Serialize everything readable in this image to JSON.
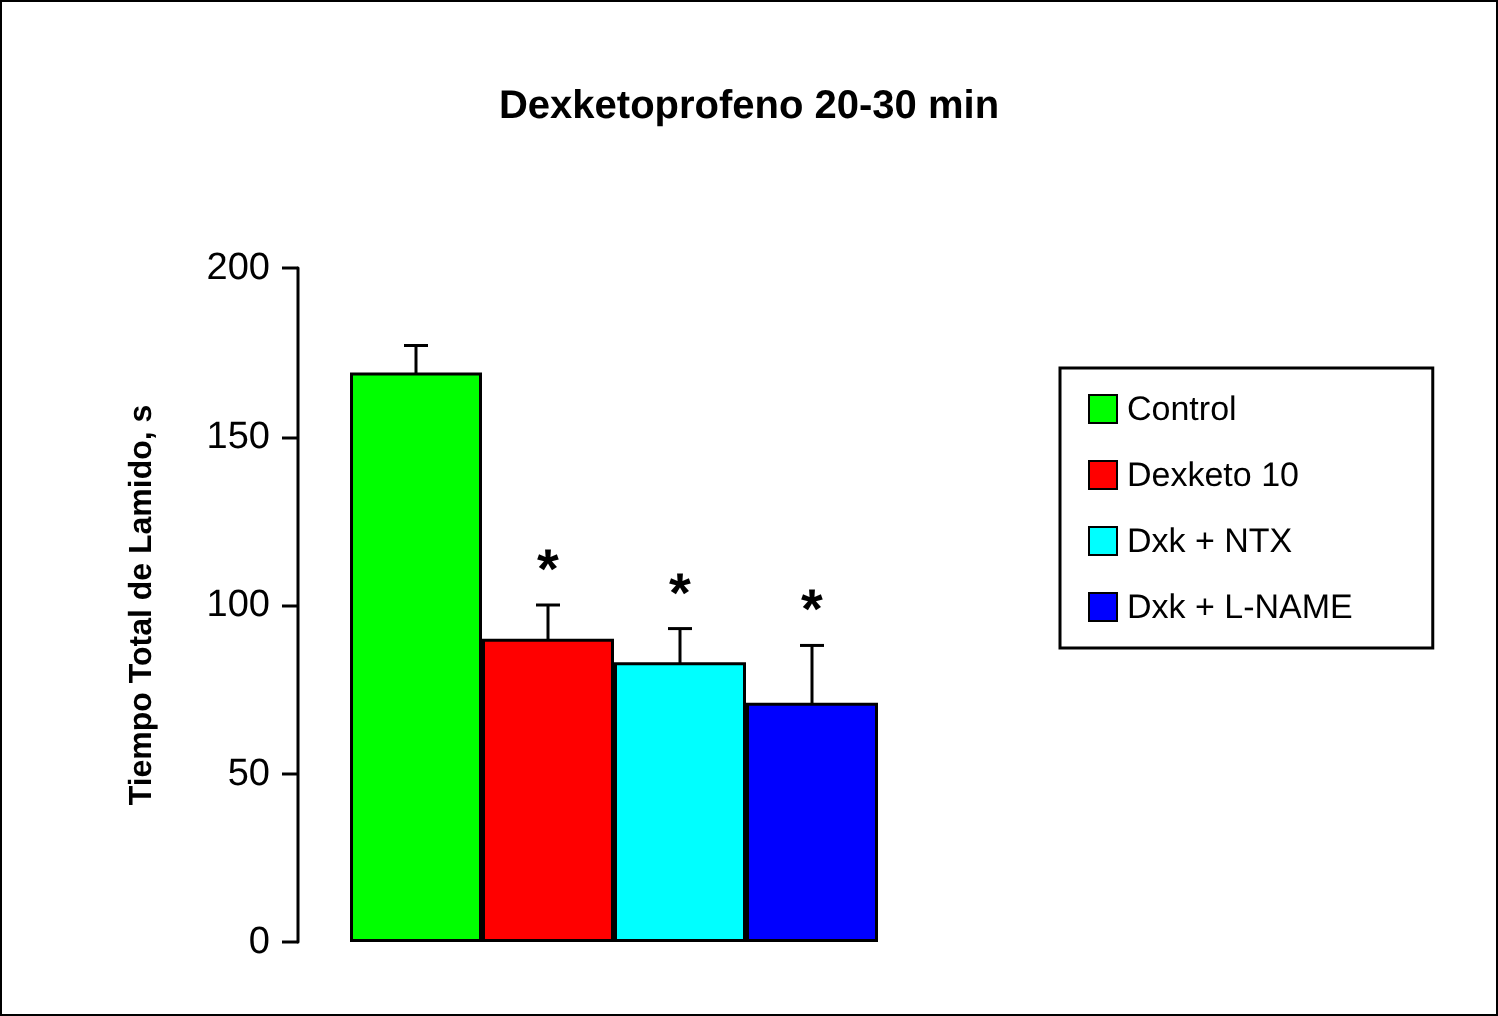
{
  "chart_data": {
    "type": "bar",
    "title": "Dexketoprofeno 20-30 min",
    "ylabel": "Tiempo Total de Lamido, s",
    "categories": [
      null
    ],
    "series": [
      {
        "name": "Control",
        "color": "#00ff00",
        "values": [
          169
        ],
        "errors": [
          8
        ]
      },
      {
        "name": "Dexketo 10",
        "color": "#ff0000",
        "values": [
          90
        ],
        "errors": [
          10
        ],
        "value_labels": [
          "*"
        ]
      },
      {
        "name": "Dxk + NTX",
        "color": "#00ffff",
        "values": [
          83
        ],
        "errors": [
          10
        ],
        "value_labels": [
          "*"
        ]
      },
      {
        "name": "Dxk + L-NAME",
        "color": "#0000ff",
        "values": [
          71
        ],
        "errors": [
          17
        ],
        "value_labels": [
          "*"
        ]
      }
    ],
    "ylim": [
      0,
      200
    ],
    "yticks": [
      0,
      50,
      100,
      150,
      200
    ],
    "grid": false,
    "legend": "right"
  }
}
